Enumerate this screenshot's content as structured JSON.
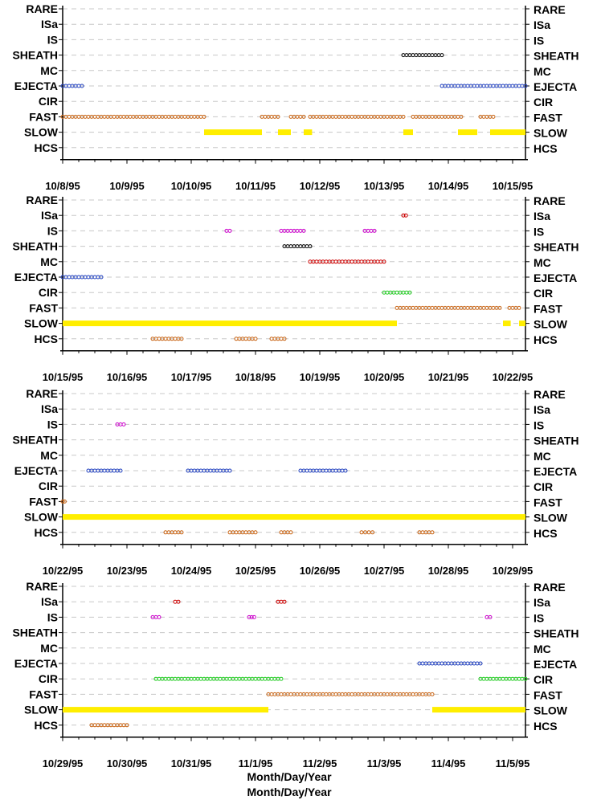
{
  "chart_data": {
    "type": "scatter",
    "x_axis_label": "Month/Day/Year",
    "categories": [
      "RARE",
      "ISa",
      "IS",
      "SHEATH",
      "MC",
      "EJECTA",
      "CIR",
      "FAST",
      "SLOW",
      "HCS"
    ],
    "colors": {
      "RARE": "#000000",
      "ISa": "#cc0000",
      "IS": "#cc00cc",
      "SHEATH": "#000000",
      "MC": "#cc0000",
      "EJECTA": "#1f3fbf",
      "CIR": "#22cc22",
      "FAST": "#c86414",
      "SLOW": "#ffee00",
      "HCS": "#c86414"
    },
    "panels": [
      {
        "xticks": [
          "10/8/95",
          "10/9/95",
          "10/10/95",
          "10/11/95",
          "10/12/95",
          "10/13/95",
          "10/14/95",
          "10/15/95"
        ],
        "xlim_days": [
          0,
          7.2
        ],
        "intervals": [
          {
            "cat": "SHEATH",
            "start": 5.3,
            "end": 5.9
          },
          {
            "cat": "EJECTA",
            "start": 0.0,
            "end": 0.3
          },
          {
            "cat": "EJECTA",
            "start": 5.9,
            "end": 7.2
          },
          {
            "cat": "FAST",
            "start": 0.0,
            "end": 2.2
          },
          {
            "cat": "FAST",
            "start": 3.1,
            "end": 3.35
          },
          {
            "cat": "FAST",
            "start": 3.55,
            "end": 3.75
          },
          {
            "cat": "FAST",
            "start": 3.85,
            "end": 5.3
          },
          {
            "cat": "FAST",
            "start": 5.45,
            "end": 6.2
          },
          {
            "cat": "FAST",
            "start": 6.5,
            "end": 6.7
          },
          {
            "cat": "SLOW",
            "start": 2.2,
            "end": 3.1
          },
          {
            "cat": "SLOW",
            "start": 3.35,
            "end": 3.55
          },
          {
            "cat": "SLOW",
            "start": 3.75,
            "end": 3.88
          },
          {
            "cat": "SLOW",
            "start": 5.3,
            "end": 5.45
          },
          {
            "cat": "SLOW",
            "start": 6.15,
            "end": 6.45
          },
          {
            "cat": "SLOW",
            "start": 6.65,
            "end": 7.2
          }
        ]
      },
      {
        "xticks": [
          "10/15/95",
          "10/16/95",
          "10/17/95",
          "10/18/95",
          "10/19/95",
          "10/20/95",
          "10/21/95",
          "10/22/95"
        ],
        "xlim_days": [
          0,
          7.2
        ],
        "intervals": [
          {
            "cat": "ISa",
            "start": 5.3,
            "end": 5.34
          },
          {
            "cat": "IS",
            "start": 2.55,
            "end": 2.6
          },
          {
            "cat": "IS",
            "start": 3.4,
            "end": 3.75
          },
          {
            "cat": "IS",
            "start": 4.7,
            "end": 4.75
          },
          {
            "cat": "IS",
            "start": 4.8,
            "end": 4.85
          },
          {
            "cat": "SHEATH",
            "start": 3.45,
            "end": 3.85
          },
          {
            "cat": "MC",
            "start": 3.85,
            "end": 5.0
          },
          {
            "cat": "EJECTA",
            "start": 0.0,
            "end": 0.6
          },
          {
            "cat": "CIR",
            "start": 5.0,
            "end": 5.4
          },
          {
            "cat": "FAST",
            "start": 5.2,
            "end": 6.8
          },
          {
            "cat": "FAST",
            "start": 6.95,
            "end": 7.1
          },
          {
            "cat": "SLOW",
            "start": 0.0,
            "end": 5.2
          },
          {
            "cat": "SLOW",
            "start": 6.85,
            "end": 6.97
          },
          {
            "cat": "SLOW",
            "start": 7.1,
            "end": 7.2
          },
          {
            "cat": "HCS",
            "start": 1.4,
            "end": 1.85
          },
          {
            "cat": "HCS",
            "start": 2.7,
            "end": 3.0
          },
          {
            "cat": "HCS",
            "start": 3.25,
            "end": 3.45
          }
        ]
      },
      {
        "xticks": [
          "10/22/95",
          "10/23/95",
          "10/24/95",
          "10/25/95",
          "10/26/95",
          "10/27/95",
          "10/28/95",
          "10/29/95"
        ],
        "xlim_days": [
          0,
          7.2
        ],
        "intervals": [
          {
            "cat": "IS",
            "start": 0.85,
            "end": 0.95
          },
          {
            "cat": "EJECTA",
            "start": 0.4,
            "end": 0.9
          },
          {
            "cat": "EJECTA",
            "start": 1.95,
            "end": 2.6
          },
          {
            "cat": "EJECTA",
            "start": 3.7,
            "end": 4.4
          },
          {
            "cat": "FAST",
            "start": 0.0,
            "end": 0.03
          },
          {
            "cat": "SLOW",
            "start": 0.0,
            "end": 7.2
          },
          {
            "cat": "HCS",
            "start": 1.6,
            "end": 1.85
          },
          {
            "cat": "HCS",
            "start": 2.6,
            "end": 3.0
          },
          {
            "cat": "HCS",
            "start": 3.4,
            "end": 3.55
          },
          {
            "cat": "HCS",
            "start": 4.65,
            "end": 4.82
          },
          {
            "cat": "HCS",
            "start": 5.55,
            "end": 5.75
          }
        ]
      },
      {
        "xticks": [
          "10/29/95",
          "10/30/95",
          "10/31/95",
          "11/1/95",
          "11/2/95",
          "11/3/95",
          "11/4/95",
          "11/5/95"
        ],
        "xlim_days": [
          0,
          7.2
        ],
        "intervals": [
          {
            "cat": "ISa",
            "start": 1.75,
            "end": 1.8
          },
          {
            "cat": "ISa",
            "start": 3.35,
            "end": 3.45
          },
          {
            "cat": "IS",
            "start": 1.4,
            "end": 1.5
          },
          {
            "cat": "IS",
            "start": 2.9,
            "end": 2.98
          },
          {
            "cat": "IS",
            "start": 6.6,
            "end": 6.65
          },
          {
            "cat": "EJECTA",
            "start": 5.55,
            "end": 6.5
          },
          {
            "cat": "CIR",
            "start": 1.45,
            "end": 3.4
          },
          {
            "cat": "CIR",
            "start": 6.5,
            "end": 7.2
          },
          {
            "cat": "FAST",
            "start": 3.2,
            "end": 5.75
          },
          {
            "cat": "SLOW",
            "start": 0.0,
            "end": 3.2
          },
          {
            "cat": "SLOW",
            "start": 5.75,
            "end": 7.2
          },
          {
            "cat": "HCS",
            "start": 0.45,
            "end": 1.0
          }
        ]
      }
    ]
  }
}
